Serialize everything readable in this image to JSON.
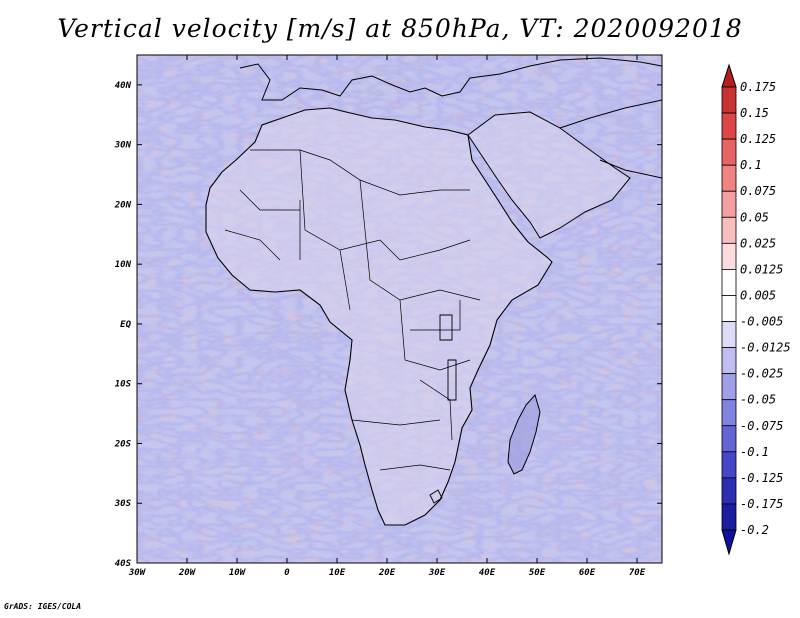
{
  "title": "Vertical velocity [m/s] at 850hPa, VT: 2020092018",
  "credit": "GrADS: IGES/COLA",
  "map": {
    "lon_range": [
      -30,
      75
    ],
    "lat_range": [
      -40,
      45
    ],
    "lon_ticks": [
      {
        "value": -30,
        "label": "30W"
      },
      {
        "value": -20,
        "label": "20W"
      },
      {
        "value": -10,
        "label": "10W"
      },
      {
        "value": 0,
        "label": "0"
      },
      {
        "value": 10,
        "label": "10E"
      },
      {
        "value": 20,
        "label": "20E"
      },
      {
        "value": 30,
        "label": "30E"
      },
      {
        "value": 40,
        "label": "40E"
      },
      {
        "value": 50,
        "label": "50E"
      },
      {
        "value": 60,
        "label": "60E"
      },
      {
        "value": 70,
        "label": "70E"
      }
    ],
    "lat_ticks": [
      {
        "value": 40,
        "label": "40N"
      },
      {
        "value": 30,
        "label": "30N"
      },
      {
        "value": 20,
        "label": "20N"
      },
      {
        "value": 10,
        "label": "10N"
      },
      {
        "value": 0,
        "label": "EQ"
      },
      {
        "value": -10,
        "label": "10S"
      },
      {
        "value": -20,
        "label": "20S"
      },
      {
        "value": -30,
        "label": "30S"
      },
      {
        "value": -40,
        "label": "40S"
      }
    ],
    "background_color": "#c4c6ee",
    "coastline_color": "#000000"
  },
  "colorbar": {
    "labels": [
      "0.175",
      "0.15",
      "0.125",
      "0.1",
      "0.075",
      "0.05",
      "0.025",
      "0.0125",
      "0.005",
      "-0.005",
      "-0.0125",
      "-0.025",
      "-0.05",
      "-0.075",
      "-0.1",
      "-0.125",
      "-0.175",
      "-0.2"
    ],
    "colors": [
      "#b41e1e",
      "#c83232",
      "#dc4646",
      "#e86464",
      "#f08282",
      "#f4a0a0",
      "#f8bebe",
      "#fcdcdc",
      "#ffffff",
      "#ffffff",
      "#dcdcf8",
      "#bebef0",
      "#a0a0e8",
      "#8282e0",
      "#6464d6",
      "#4646c8",
      "#2e2eb4",
      "#1c1ca0",
      "#1010a0"
    ]
  }
}
